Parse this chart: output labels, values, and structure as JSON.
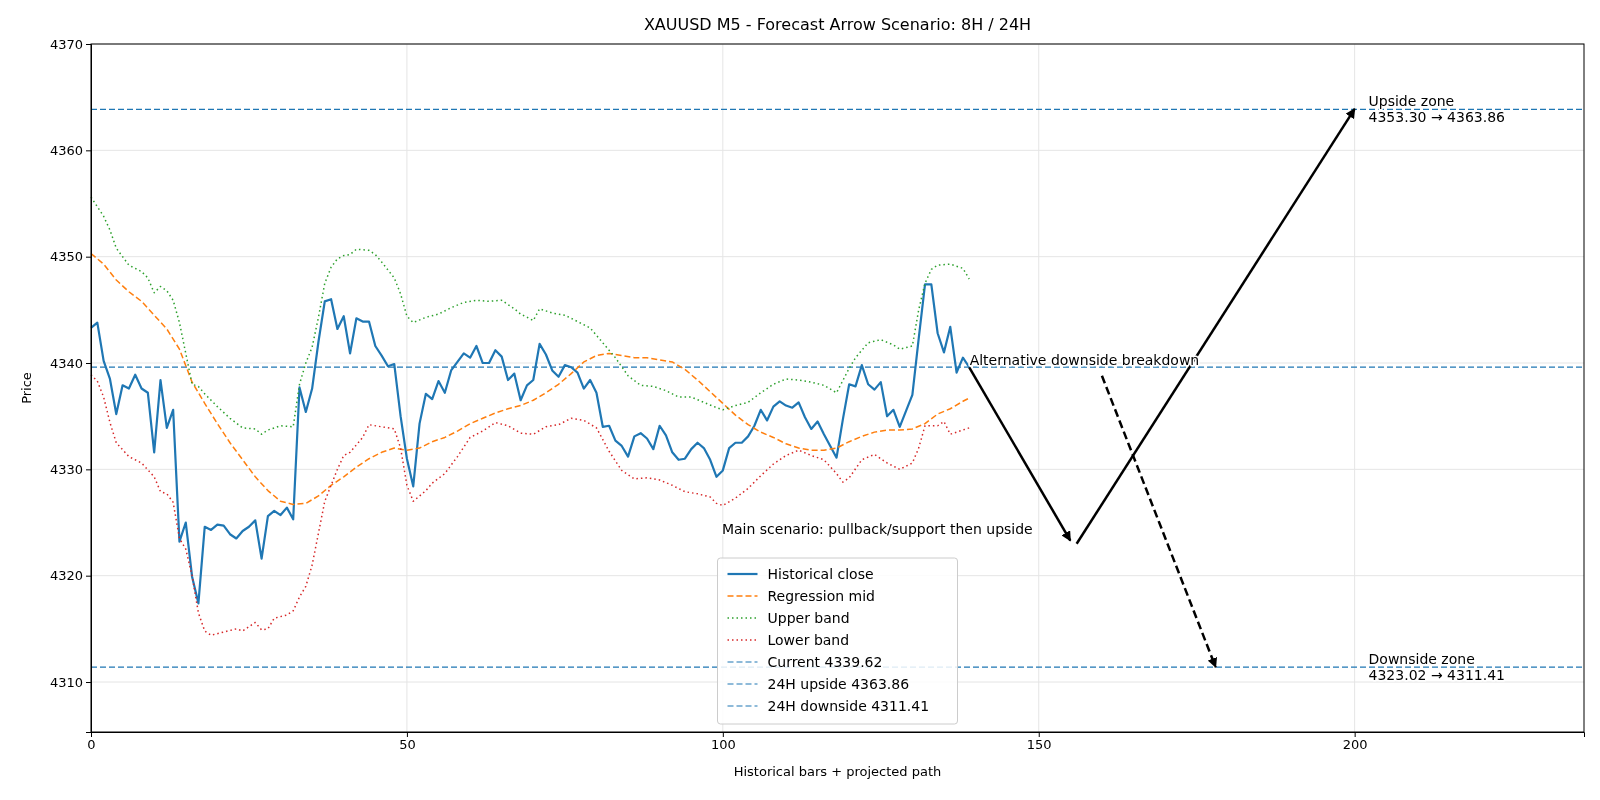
{
  "chart_data": {
    "type": "line",
    "title": "XAUUSD M5 - Forecast Arrow Scenario: 8H / 24H",
    "xlabel": "Historical bars + projected path",
    "ylabel": "Price",
    "xlim": [
      0,
      236.3
    ],
    "ylim": [
      4305.3,
      4370
    ],
    "xticks": [
      0,
      50,
      100,
      150,
      200
    ],
    "yticks": [
      4310,
      4320,
      4330,
      4340,
      4350,
      4360,
      4370
    ],
    "grid": true,
    "legend": "bottom",
    "series": [
      {
        "name": "Historical close",
        "color": "#1f77b4",
        "line_style": "solid",
        "x": [
          0,
          1,
          2,
          3,
          4,
          5,
          6,
          7,
          8,
          9,
          10,
          11,
          12,
          13,
          14,
          15,
          16,
          17,
          18,
          19,
          20,
          21,
          22,
          23,
          24,
          25,
          26,
          27,
          28,
          29,
          30,
          31,
          32,
          33,
          34,
          35,
          36,
          37,
          38,
          39,
          40,
          41,
          42,
          43,
          44,
          45,
          46,
          47,
          48,
          49,
          50,
          51,
          52,
          53,
          54,
          55,
          56,
          57,
          58,
          59,
          60,
          61,
          62,
          63,
          64,
          65,
          66,
          67,
          68,
          69,
          70,
          71,
          72,
          73,
          74,
          75,
          76,
          77,
          78,
          79,
          80,
          81,
          82,
          83,
          84,
          85,
          86,
          87,
          88,
          89,
          90,
          91,
          92,
          93,
          94,
          95,
          96,
          97,
          98,
          99,
          100,
          101,
          102,
          103,
          104,
          105,
          106,
          107,
          108,
          109,
          110,
          111,
          112,
          113,
          114,
          115,
          116,
          117,
          118,
          119,
          120,
          121,
          122,
          123,
          124,
          125,
          126,
          127,
          128,
          129,
          130,
          131,
          132,
          133,
          134,
          135,
          136,
          137,
          138,
          139
        ],
        "values": [
          4343.3,
          4343.8,
          4340.2,
          4338.5,
          4335.2,
          4337.9,
          4337.6,
          4338.9,
          4337.6,
          4337.2,
          4331.6,
          4338.4,
          4333.9,
          4335.6,
          4323.2,
          4325.0,
          4319.9,
          4317.4,
          4324.6,
          4324.3,
          4324.8,
          4324.7,
          4323.9,
          4323.5,
          4324.2,
          4324.6,
          4325.2,
          4321.6,
          4325.6,
          4326.1,
          4325.7,
          4326.4,
          4325.3,
          4337.7,
          4335.4,
          4337.6,
          4342.0,
          4345.8,
          4346.0,
          4343.2,
          4344.4,
          4340.9,
          4344.2,
          4343.9,
          4343.9,
          4341.6,
          4340.7,
          4339.7,
          4339.9,
          4335.0,
          4331.0,
          4328.4,
          4334.3,
          4337.1,
          4336.6,
          4338.3,
          4337.2,
          4339.3,
          4340.1,
          4340.9,
          4340.5,
          4341.6,
          4340.0,
          4340.0,
          4341.2,
          4340.6,
          4338.4,
          4339.0,
          4336.5,
          4337.9,
          4338.4,
          4341.8,
          4340.8,
          4339.3,
          4338.7,
          4339.8,
          4339.6,
          4339.1,
          4337.6,
          4338.4,
          4337.2,
          4334.0,
          4334.1,
          4332.7,
          4332.2,
          4331.2,
          4333.1,
          4333.4,
          4332.9,
          4331.9,
          4334.1,
          4333.2,
          4331.6,
          4330.9,
          4331.0,
          4331.9,
          4332.5,
          4332.0,
          4330.9,
          4329.3,
          4329.9,
          4332.0,
          4332.5,
          4332.5,
          4333.1,
          4334.1,
          4335.6,
          4334.6,
          4335.9,
          4336.4,
          4336.0,
          4335.8,
          4336.3,
          4334.9,
          4333.8,
          4334.5,
          4333.3,
          4332.2,
          4331.1,
          4334.7,
          4338.0,
          4337.8,
          4339.8,
          4338.0,
          4337.5,
          4338.2,
          4335.0,
          4335.6,
          4334.0,
          4335.5,
          4337.0,
          4342.3,
          4347.4,
          4347.4,
          4342.8,
          4341.0,
          4343.4,
          4339.1,
          4340.5,
          4339.6
        ]
      },
      {
        "name": "Regression mid",
        "color": "#ff7f0e",
        "line_style": "dashed",
        "x": [
          0,
          2,
          4,
          6,
          8,
          10,
          12,
          14,
          16,
          18,
          20,
          22,
          24,
          26,
          28,
          30,
          32,
          34,
          36,
          38,
          40,
          42,
          44,
          46,
          48,
          50,
          52,
          54,
          56,
          58,
          60,
          62,
          64,
          66,
          68,
          70,
          72,
          74,
          76,
          78,
          80,
          82,
          84,
          86,
          88,
          90,
          92,
          94,
          96,
          98,
          100,
          102,
          104,
          106,
          108,
          110,
          112,
          114,
          116,
          118,
          120,
          122,
          124,
          126,
          128,
          130,
          132,
          134,
          136,
          138,
          139
        ],
        "values": [
          4350.3,
          4349.3,
          4347.8,
          4346.7,
          4345.8,
          4344.5,
          4343.2,
          4341.3,
          4338.2,
          4336.2,
          4334.3,
          4332.5,
          4330.9,
          4329.3,
          4328.0,
          4327.0,
          4326.7,
          4326.8,
          4327.5,
          4328.5,
          4329.3,
          4330.2,
          4331.0,
          4331.6,
          4332.0,
          4331.8,
          4332.0,
          4332.6,
          4333.0,
          4333.6,
          4334.3,
          4334.8,
          4335.3,
          4335.7,
          4336.0,
          4336.5,
          4337.2,
          4338.0,
          4339.0,
          4340.1,
          4340.7,
          4340.9,
          4340.7,
          4340.5,
          4340.5,
          4340.3,
          4340.1,
          4339.4,
          4338.4,
          4337.3,
          4336.2,
          4335.1,
          4334.2,
          4333.5,
          4333.0,
          4332.4,
          4332.0,
          4331.8,
          4331.8,
          4332.0,
          4332.6,
          4333.1,
          4333.5,
          4333.7,
          4333.7,
          4333.8,
          4334.3,
          4335.2,
          4335.7,
          4336.4,
          4336.7
        ]
      },
      {
        "name": "Upper band",
        "color": "#2ca02c",
        "line_style": "dotted",
        "x": [
          0,
          2,
          3,
          4,
          6,
          8,
          9,
          10,
          11,
          12,
          13,
          14,
          15,
          16,
          17,
          18,
          20,
          22,
          24,
          26,
          27,
          28,
          30,
          32,
          33,
          34,
          35,
          36,
          37,
          38,
          39,
          40,
          41,
          42,
          44,
          45,
          46,
          48,
          49,
          50,
          51,
          53,
          55,
          57,
          59,
          61,
          63,
          65,
          67,
          68,
          70,
          71,
          73,
          75,
          77,
          79,
          81,
          83,
          85,
          87,
          89,
          91,
          93,
          95,
          97,
          99,
          100,
          102,
          104,
          106,
          108,
          110,
          112,
          114,
          116,
          118,
          120,
          121,
          123,
          125,
          127,
          128,
          130,
          131,
          132,
          133,
          134,
          136,
          138,
          139
        ],
        "values": [
          4355.6,
          4353.8,
          4352.5,
          4350.8,
          4349.2,
          4348.6,
          4348.0,
          4346.6,
          4347.2,
          4346.8,
          4345.9,
          4343.8,
          4340.9,
          4338.0,
          4337.8,
          4337.1,
          4335.9,
          4334.8,
          4333.9,
          4333.8,
          4333.3,
          4333.7,
          4334.1,
          4334.0,
          4338.0,
          4340.0,
          4341.5,
          4344.3,
          4347.5,
          4349.0,
          4349.8,
          4350.1,
          4350.2,
          4350.7,
          4350.6,
          4350.2,
          4349.5,
          4348.0,
          4346.5,
          4344.4,
          4343.8,
          4344.3,
          4344.6,
          4345.2,
          4345.7,
          4345.9,
          4345.8,
          4345.9,
          4345.1,
          4344.6,
          4344.0,
          4345.1,
          4344.7,
          4344.5,
          4343.9,
          4343.3,
          4341.9,
          4340.5,
          4338.8,
          4337.9,
          4337.8,
          4337.4,
          4336.8,
          4336.8,
          4336.3,
          4335.8,
          4335.6,
          4336.0,
          4336.3,
          4337.2,
          4338.0,
          4338.5,
          4338.4,
          4338.2,
          4337.9,
          4337.2,
          4339.5,
          4340.5,
          4341.9,
          4342.2,
          4341.7,
          4341.3,
          4341.6,
          4345.0,
          4347.5,
          4348.8,
          4349.2,
          4349.3,
          4348.9,
          4347.9
        ]
      },
      {
        "name": "Lower band",
        "color": "#d62728",
        "line_style": "dotted",
        "x": [
          0,
          1,
          2,
          3,
          4,
          6,
          8,
          10,
          11,
          12,
          13,
          14,
          15,
          16,
          17,
          18,
          19,
          21,
          23,
          24,
          26,
          27,
          28,
          29,
          31,
          32,
          33,
          34,
          35,
          36,
          37,
          38,
          39,
          40,
          41,
          43,
          44,
          46,
          48,
          49,
          50,
          51,
          52,
          53,
          54,
          56,
          58,
          60,
          62,
          64,
          66,
          68,
          70,
          72,
          74,
          76,
          78,
          80,
          82,
          84,
          86,
          88,
          90,
          92,
          94,
          96,
          98,
          99,
          100,
          102,
          104,
          106,
          108,
          110,
          112,
          114,
          116,
          118,
          119,
          120,
          122,
          124,
          126,
          128,
          130,
          131,
          132,
          134,
          135,
          136,
          138,
          139
        ],
        "values": [
          4338.9,
          4338.3,
          4336.8,
          4334.4,
          4332.5,
          4331.2,
          4330.6,
          4329.3,
          4327.9,
          4327.7,
          4326.9,
          4323.5,
          4322.5,
          4320.0,
          4316.5,
          4314.8,
          4314.4,
          4314.7,
          4315.0,
          4314.8,
          4315.6,
          4314.9,
          4315.0,
          4316.0,
          4316.3,
          4316.7,
          4318.0,
          4319.0,
          4321.0,
          4324.0,
          4327.0,
          4328.5,
          4330.0,
          4331.3,
          4331.6,
          4333.0,
          4334.2,
          4334.0,
          4333.8,
          4332.0,
          4328.5,
          4327.0,
          4327.5,
          4328.0,
          4328.7,
          4329.6,
          4331.2,
          4333.0,
          4333.6,
          4334.4,
          4334.1,
          4333.4,
          4333.3,
          4334.0,
          4334.2,
          4334.8,
          4334.6,
          4333.9,
          4331.7,
          4329.9,
          4329.1,
          4329.2,
          4329.0,
          4328.5,
          4327.9,
          4327.7,
          4327.4,
          4326.8,
          4326.6,
          4327.3,
          4328.2,
          4329.4,
          4330.5,
          4331.3,
          4331.8,
          4331.3,
          4330.9,
          4329.6,
          4328.8,
          4329.2,
          4330.9,
          4331.4,
          4330.6,
          4330.0,
          4330.6,
          4332.0,
          4334.1,
          4334.1,
          4334.5,
          4333.3,
          4333.7,
          4333.9
        ]
      },
      {
        "color": "#000000",
        "line_style": "solid",
        "x": [
          139,
          155
        ],
        "values": [
          4339.6,
          4323.3
        ]
      },
      {
        "color": "#000000",
        "line_style": "solid",
        "x": [
          156,
          200
        ],
        "values": [
          4323.0,
          4363.9
        ]
      },
      {
        "color": "#000000",
        "line_style": "dashed",
        "x": [
          160,
          178
        ],
        "values": [
          4338.8,
          4311.4
        ]
      }
    ],
    "ref_lines": [
      {
        "axis": "y",
        "value": 4339.62,
        "label": "Current 4339.62",
        "color": "#1f77b4",
        "line_style": "dashed"
      },
      {
        "axis": "y",
        "value": 4363.86,
        "label": "24H upside 4363.86",
        "color": "#1f77b4",
        "line_style": "dashed"
      },
      {
        "axis": "y",
        "value": 4311.41,
        "label": "24H downside 4311.41",
        "color": "#1f77b4",
        "line_style": "dashed"
      }
    ],
    "annotations": [
      {
        "text": "Upside zone\n4353.30 → 4363.86",
        "y": 4363.86
      },
      {
        "text": "Downside zone\n4323.02 → 4311.41",
        "y": 4311.41
      },
      {
        "text": "Alternative downside breakdown",
        "y": 4339.62
      },
      "Main scenario: pullback/support then upside"
    ]
  }
}
